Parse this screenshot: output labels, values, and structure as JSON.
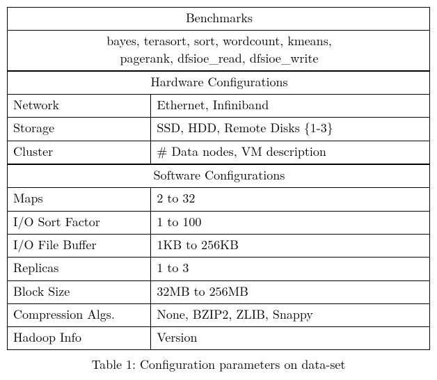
{
  "benchmarks": {
    "header": "Benchmarks",
    "line1": "bayes, terasort, sort, wordcount, kmeans,",
    "line2": "pagerank, dfsioe_read, dfsioe_write"
  },
  "hardware": {
    "header": "Hardware Configurations",
    "rows": [
      {
        "label": "Network",
        "value": "Ethernet, Infiniband"
      },
      {
        "label": "Storage",
        "value": "SSD, HDD, Remote Disks {1-3}"
      },
      {
        "label": "Cluster",
        "value": "# Data nodes, VM description"
      }
    ]
  },
  "software": {
    "header": "Software Configurations",
    "rows": [
      {
        "label": "Maps",
        "value": "2 to 32"
      },
      {
        "label": "I/O Sort Factor",
        "value": "1 to 100"
      },
      {
        "label": "I/O File Buffer",
        "value": "1KB to 256KB"
      },
      {
        "label": "Replicas",
        "value": "1 to 3"
      },
      {
        "label": "Block Size",
        "value": "32MB to 256MB"
      },
      {
        "label": "Compression Algs.",
        "value": "None, BZIP2, ZLIB, Snappy"
      },
      {
        "label": "Hadoop Info",
        "value": "Version"
      }
    ]
  },
  "caption": "Table 1: Configuration parameters on data-set"
}
